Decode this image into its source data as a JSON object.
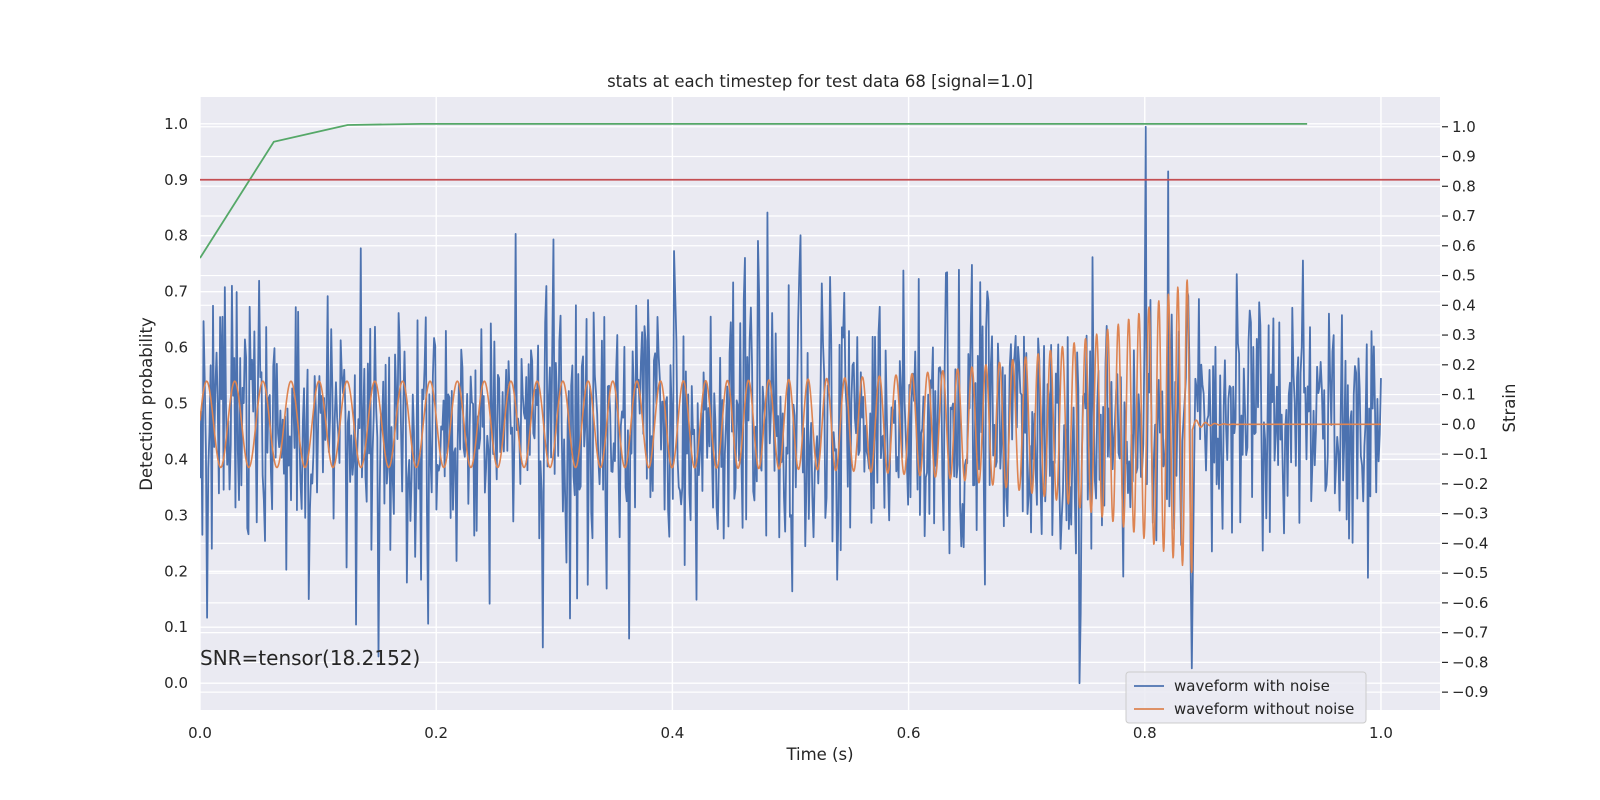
{
  "chart_data": {
    "type": "line",
    "title": "stats at each timestep for test data 68 [signal=1.0]",
    "xlabel": "Time (s)",
    "ylabel": "Detection probability",
    "y2label": "Strain",
    "xlim": [
      0.0,
      1.05
    ],
    "ylim": [
      -0.048,
      1.048
    ],
    "y2lim": [
      -0.96,
      1.1
    ],
    "x_ticks": [
      "0.0",
      "0.2",
      "0.4",
      "0.6",
      "0.8",
      "1.0"
    ],
    "x_tick_values": [
      0.0,
      0.2,
      0.4,
      0.6,
      0.8,
      1.0
    ],
    "y_ticks": [
      "0.0",
      "0.1",
      "0.2",
      "0.3",
      "0.4",
      "0.5",
      "0.6",
      "0.7",
      "0.8",
      "0.9",
      "1.0"
    ],
    "y_tick_values": [
      0.0,
      0.1,
      0.2,
      0.3,
      0.4,
      0.5,
      0.6,
      0.7,
      0.8,
      0.9,
      1.0
    ],
    "y2_ticks": [
      "−0.9",
      "−0.8",
      "−0.7",
      "−0.6",
      "−0.5",
      "−0.4",
      "−0.3",
      "−0.2",
      "−0.1",
      "0.0",
      "0.1",
      "0.2",
      "0.3",
      "0.4",
      "0.5",
      "0.6",
      "0.7",
      "0.8",
      "0.9",
      "1.0"
    ],
    "y2_tick_values": [
      -0.9,
      -0.8,
      -0.7,
      -0.6,
      -0.5,
      -0.4,
      -0.3,
      -0.2,
      -0.1,
      0.0,
      0.1,
      0.2,
      0.3,
      0.4,
      0.5,
      0.6,
      0.7,
      0.8,
      0.9,
      1.0
    ],
    "grid": true,
    "legend_position": "lower-right",
    "annotation": "SNR=tensor(18.2152)",
    "threshold": {
      "y": 0.9,
      "color": "#c44e52"
    },
    "probability": {
      "color": "#55a868",
      "x": [
        0.0,
        0.0625,
        0.125,
        0.1875,
        0.25,
        0.3125,
        0.375,
        0.4375,
        0.5,
        0.5625,
        0.625,
        0.6875,
        0.75,
        0.8125,
        0.875,
        0.9375
      ],
      "y": [
        0.76,
        0.968,
        0.998,
        1.0,
        1.0,
        1.0,
        1.0,
        1.0,
        1.0,
        1.0,
        1.0,
        1.0,
        1.0,
        1.0,
        1.0,
        1.0
      ]
    },
    "series": [
      {
        "name": "waveform with noise",
        "color": "#4c72b0",
        "axis": "right",
        "x_start": 0.0,
        "x_end": 1.0,
        "n_points": 1000,
        "std": 0.23,
        "seed": 68,
        "spikes": [
          [
            0.006,
            -0.65
          ],
          [
            0.193,
            -0.67
          ],
          [
            0.29,
            -0.75
          ],
          [
            0.363,
            -0.72
          ],
          [
            0.745,
            -0.87
          ],
          [
            0.801,
            1.0
          ],
          [
            0.82,
            0.85
          ],
          [
            0.84,
            -0.82
          ]
        ]
      },
      {
        "name": "waveform without noise",
        "color": "#dd8452",
        "axis": "right",
        "x_start": 0.0,
        "x_end": 1.0,
        "merger_time": 0.84,
        "start_amplitude": 0.145,
        "peak_amplitude": 0.5,
        "start_frequency": 42,
        "end_frequency": 130,
        "n_points": 3000
      }
    ]
  }
}
